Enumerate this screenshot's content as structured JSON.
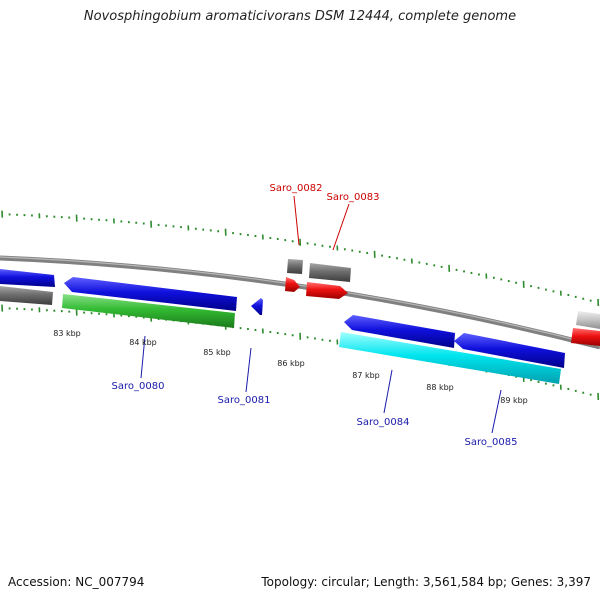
{
  "title": "Novosphingobium aromaticivorans DSM 12444, complete genome",
  "footer": {
    "accession": "Accession: NC_007794",
    "summary": "Topology: circular; Length: 3,561,584 bp; Genes: 3,397"
  },
  "scale_labels": [
    "83 kbp",
    "84 kbp",
    "85 kbp",
    "86 kbp",
    "87 kbp",
    "88 kbp",
    "89 kbp"
  ],
  "gene_labels": [
    {
      "text": "Saro_0080",
      "strand": "reverse"
    },
    {
      "text": "Saro_0081",
      "strand": "reverse"
    },
    {
      "text": "Saro_0082",
      "strand": "forward"
    },
    {
      "text": "Saro_0083",
      "strand": "forward"
    },
    {
      "text": "Saro_0084",
      "strand": "reverse"
    },
    {
      "text": "Saro_0085",
      "strand": "reverse"
    }
  ],
  "colors": {
    "forward_label": "#cc0000",
    "reverse_label": "#1a1aaa",
    "tick": "#2e8b2e",
    "backbone": "#808080",
    "blue_feature": "#1010dd",
    "cyan_feature": "#00e5ee",
    "green_feature": "#33bb33",
    "red_feature": "#ee1111",
    "gray_feature": "#6e6e6e",
    "light_gray_feature": "#c8c8c8"
  }
}
